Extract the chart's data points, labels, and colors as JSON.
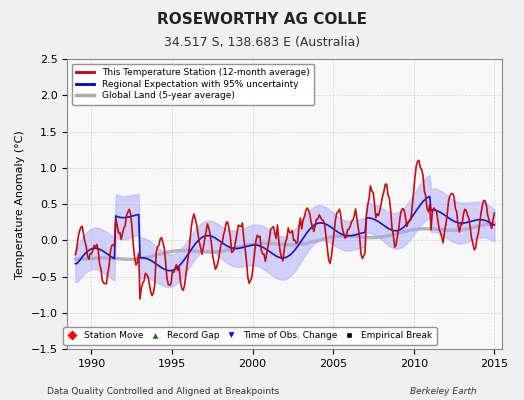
{
  "title": "ROSEWORTHY AG COLLE",
  "subtitle": "34.517 S, 138.683 E (Australia)",
  "ylabel": "Temperature Anomaly (°C)",
  "xlabel_left": "Data Quality Controlled and Aligned at Breakpoints",
  "xlabel_right": "Berkeley Earth",
  "ylim": [
    -1.5,
    2.5
  ],
  "xlim": [
    1988.5,
    2015.5
  ],
  "yticks": [
    -1.5,
    -1.0,
    -0.5,
    0.0,
    0.5,
    1.0,
    1.5,
    2.0,
    2.5
  ],
  "xticks": [
    1990,
    1995,
    2000,
    2005,
    2010,
    2015
  ],
  "legend1_items": [
    "This Temperature Station (12-month average)",
    "Regional Expectation with 95% uncertainty",
    "Global Land (5-year average)"
  ],
  "legend2_items": [
    "Station Move",
    "Record Gap",
    "Time of Obs. Change",
    "Empirical Break"
  ],
  "colors": {
    "station": "#cc0000",
    "regional": "#0000cc",
    "regional_fill": "#aaaaff",
    "global": "#aaaaaa",
    "background": "#f0f0f0",
    "plot_bg": "#f8f8f8"
  }
}
